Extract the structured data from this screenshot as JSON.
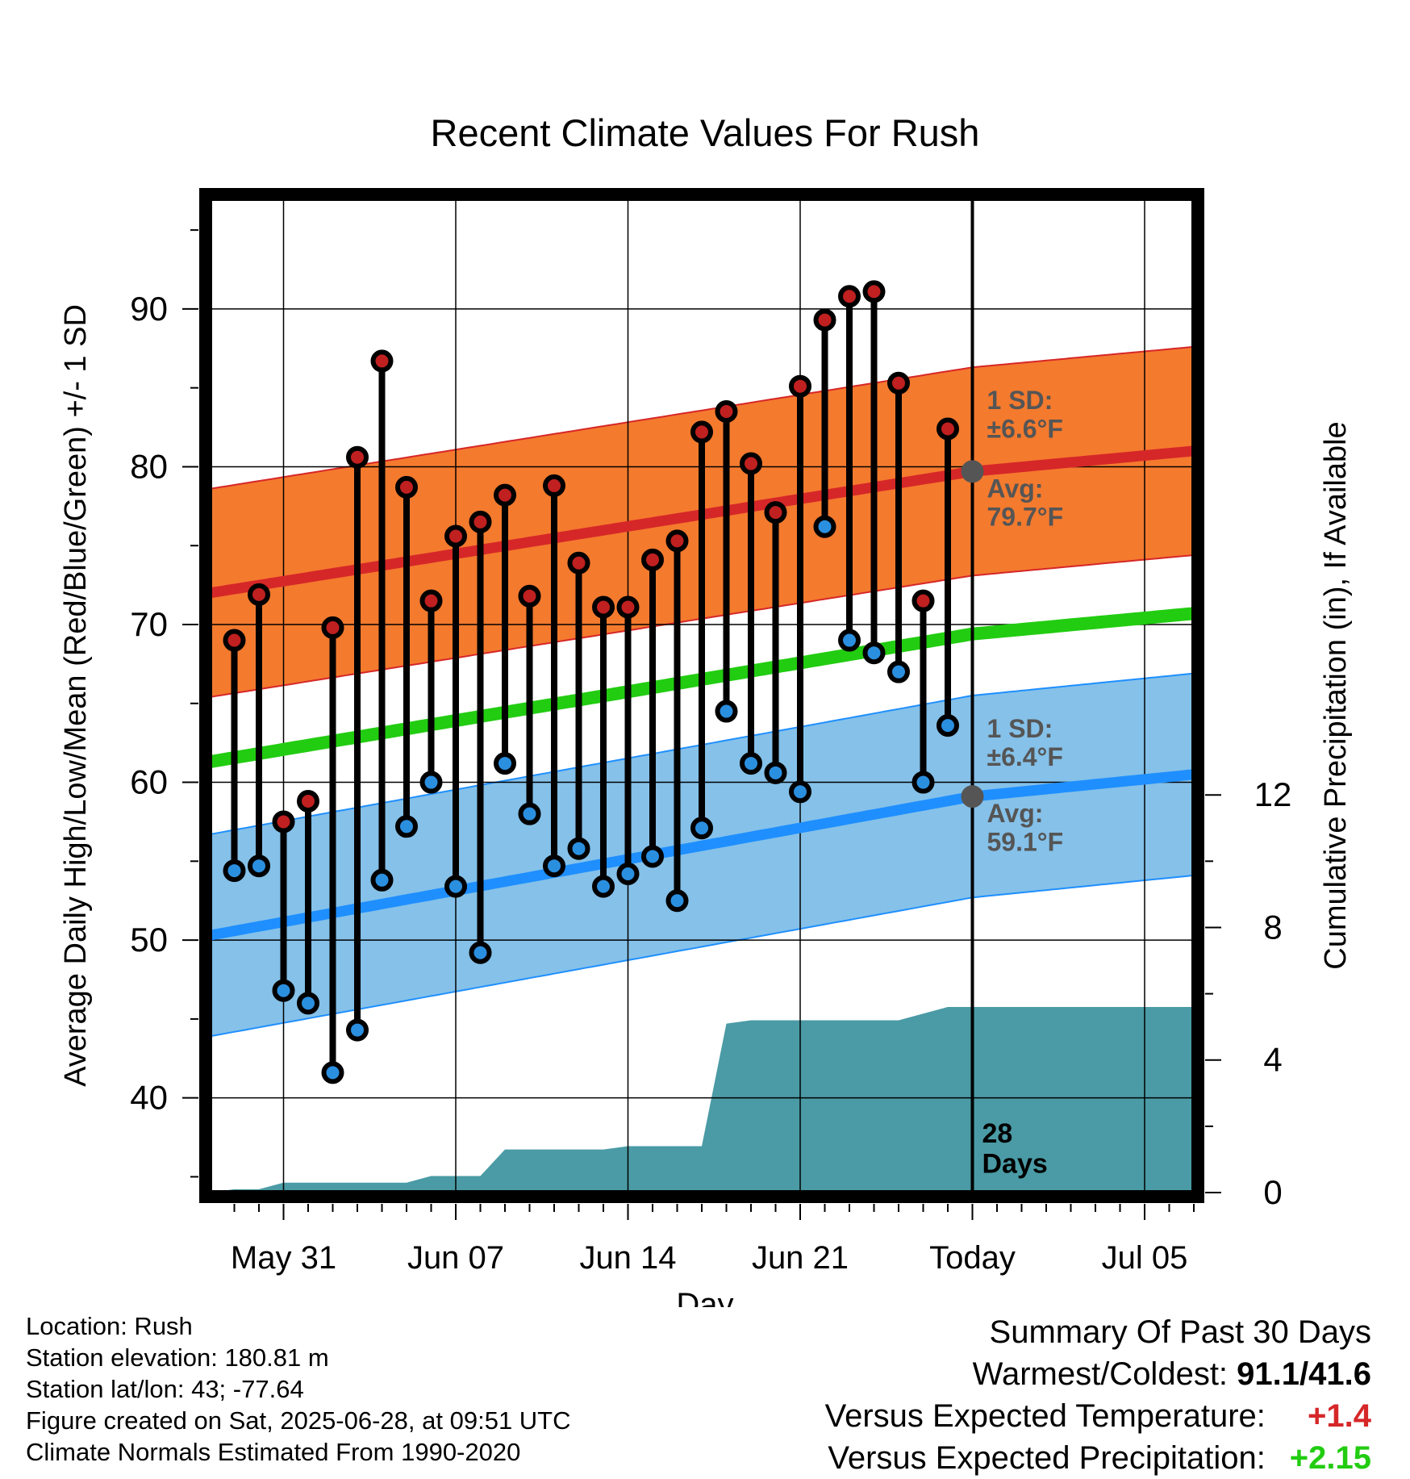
{
  "chart_data": {
    "type": "line",
    "title": "Recent Climate Values For Rush",
    "xlabel": "Day",
    "ylabel": "Average Daily High/Low/Mean (Red/Blue/Green) +/- 1 SD",
    "y2label": "Cumulative Precipitation (in), If Available",
    "ylim": [
      34,
      97
    ],
    "y2lim": [
      0,
      30
    ],
    "yticks": [
      40,
      50,
      60,
      70,
      80,
      90
    ],
    "y2ticks": [
      0,
      4,
      8,
      12
    ],
    "x_tick_labels": [
      {
        "date": "2025-05-31",
        "label": "May 31"
      },
      {
        "date": "2025-06-07",
        "label": "Jun 07"
      },
      {
        "date": "2025-06-14",
        "label": "Jun 14"
      },
      {
        "date": "2025-06-21",
        "label": "Jun 21"
      },
      {
        "date": "2025-06-28",
        "label": "Today"
      },
      {
        "date": "2025-07-05",
        "label": "Jul 05"
      }
    ],
    "xlim": [
      "2025-05-28",
      "2025-07-07"
    ],
    "today": "2025-06-28",
    "window_label": "28\nDays",
    "grid": true,
    "days": [
      "2025-05-29",
      "2025-05-30",
      "2025-05-31",
      "2025-06-01",
      "2025-06-02",
      "2025-06-03",
      "2025-06-04",
      "2025-06-05",
      "2025-06-06",
      "2025-06-07",
      "2025-06-08",
      "2025-06-09",
      "2025-06-10",
      "2025-06-11",
      "2025-06-12",
      "2025-06-13",
      "2025-06-14",
      "2025-06-15",
      "2025-06-16",
      "2025-06-17",
      "2025-06-18",
      "2025-06-19",
      "2025-06-20",
      "2025-06-21",
      "2025-06-22",
      "2025-06-23",
      "2025-06-24",
      "2025-06-25",
      "2025-06-26",
      "2025-06-27"
    ],
    "series": [
      {
        "name": "High",
        "color": "#c02020",
        "values": [
          69.0,
          71.9,
          57.5,
          58.8,
          69.8,
          80.6,
          86.7,
          78.7,
          71.5,
          75.6,
          76.5,
          78.2,
          71.8,
          78.8,
          73.9,
          71.1,
          71.1,
          74.1,
          75.3,
          82.2,
          83.5,
          80.2,
          77.1,
          85.1,
          89.3,
          90.8,
          91.1,
          85.3,
          71.5,
          82.4
        ]
      },
      {
        "name": "Low",
        "color": "#2b8fe0",
        "values": [
          54.4,
          54.7,
          46.8,
          46.0,
          41.6,
          44.3,
          53.8,
          57.2,
          60.0,
          53.4,
          49.2,
          61.2,
          58.0,
          54.7,
          55.8,
          53.4,
          54.2,
          55.3,
          52.5,
          57.1,
          64.5,
          61.2,
          60.6,
          59.4,
          76.2,
          69.0,
          68.2,
          67.0,
          60.0,
          63.6
        ]
      }
    ],
    "normals": {
      "dates": [
        "2025-05-28",
        "2025-06-28",
        "2025-07-07"
      ],
      "high_avg": [
        72.0,
        79.7,
        81.0
      ],
      "high_sd": 6.6,
      "low_avg": [
        50.3,
        59.1,
        60.5
      ],
      "low_sd": 6.4,
      "mean_avg": [
        61.3,
        69.4,
        70.7
      ]
    },
    "precip_cumulative": {
      "dates": [
        "2025-05-28",
        "2025-05-29",
        "2025-05-30",
        "2025-05-31",
        "2025-06-01",
        "2025-06-02",
        "2025-06-03",
        "2025-06-04",
        "2025-06-05",
        "2025-06-06",
        "2025-06-07",
        "2025-06-08",
        "2025-06-09",
        "2025-06-10",
        "2025-06-11",
        "2025-06-12",
        "2025-06-13",
        "2025-06-14",
        "2025-06-15",
        "2025-06-16",
        "2025-06-17",
        "2025-06-18",
        "2025-06-19",
        "2025-06-20",
        "2025-06-21",
        "2025-06-22",
        "2025-06-23",
        "2025-06-24",
        "2025-06-25",
        "2025-06-26",
        "2025-06-27",
        "2025-07-07"
      ],
      "values": [
        0.0,
        0.1,
        0.1,
        0.3,
        0.3,
        0.3,
        0.3,
        0.3,
        0.3,
        0.5,
        0.5,
        0.5,
        1.3,
        1.3,
        1.3,
        1.3,
        1.3,
        1.4,
        1.4,
        1.4,
        1.4,
        5.1,
        5.2,
        5.2,
        5.2,
        5.2,
        5.2,
        5.2,
        5.2,
        5.4,
        5.6,
        5.6
      ]
    },
    "annotations": {
      "high_sd": "1 SD:\n±6.6°F",
      "high_avg": "Avg:\n79.7°F",
      "low_sd": "1 SD:\n±6.4°F",
      "low_avg": "Avg:\n59.1°F"
    },
    "colors": {
      "high_band": "#f47a2e",
      "high_line": "#d62728",
      "low_band": "#85c1e9",
      "low_line": "#1f8fff",
      "mean_line": "#22cc11",
      "precip": "#4a9ba5",
      "annotation": "#555555"
    }
  },
  "info": {
    "location": "Location: Rush",
    "elevation": "Station elevation: 180.81 m",
    "latlon": "Station lat/lon: 43; -77.64",
    "created": "Figure created on Sat, 2025-06-28, at 09:51 UTC",
    "normals": "Climate Normals Estimated From 1990-2020"
  },
  "summary": {
    "title": "Summary Of Past 30 Days",
    "warm_cold_label": "Warmest/Coldest:",
    "warm_cold_value": "91.1/41.6",
    "temp_label": "Versus Expected Temperature:",
    "temp_value": "+1.4",
    "temp_color": "#d62728",
    "precip_label": "Versus Expected Precipitation:",
    "precip_value": "+2.15",
    "precip_color": "#22cc11"
  }
}
